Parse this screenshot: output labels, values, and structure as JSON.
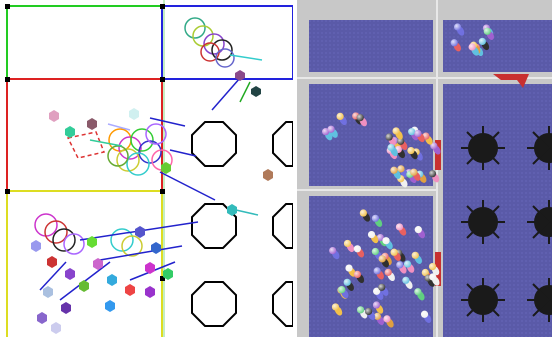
{
  "figure": {
    "panels": [
      {
        "id": "left",
        "kind": "schematic-simulation-view",
        "room_border_colors": [
          "#22cc22",
          "#2222dd",
          "#dd2222",
          "#dddd22",
          "#000000"
        ],
        "obstacle_shape": "octagon",
        "agent_marker": "hexagon"
      },
      {
        "id": "right",
        "kind": "3d-rendered-simulation-view",
        "floor_color": "#5a5aa8",
        "wall_color": "#c8c8c8",
        "obstacle_shape": "spiked-blob",
        "agent_marker": "capsule-figure",
        "accent_color": "#c83030"
      }
    ]
  }
}
